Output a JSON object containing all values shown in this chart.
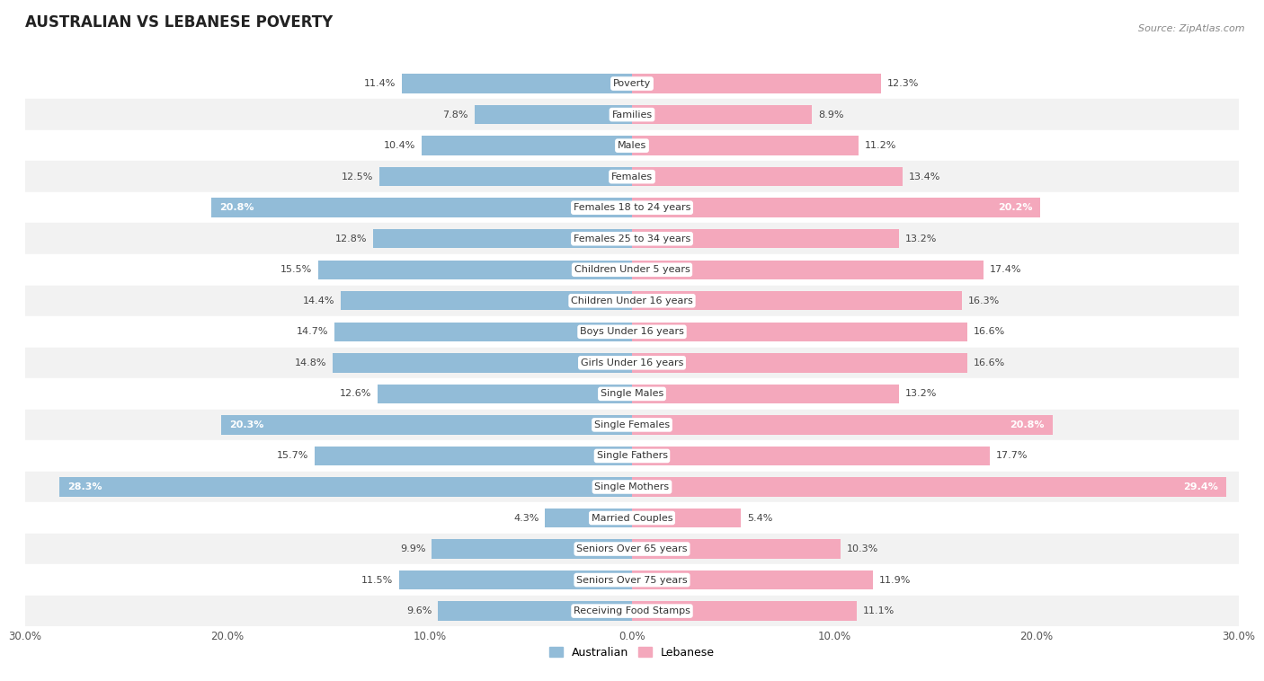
{
  "title": "AUSTRALIAN VS LEBANESE POVERTY",
  "source": "Source: ZipAtlas.com",
  "categories": [
    "Poverty",
    "Families",
    "Males",
    "Females",
    "Females 18 to 24 years",
    "Females 25 to 34 years",
    "Children Under 5 years",
    "Children Under 16 years",
    "Boys Under 16 years",
    "Girls Under 16 years",
    "Single Males",
    "Single Females",
    "Single Fathers",
    "Single Mothers",
    "Married Couples",
    "Seniors Over 65 years",
    "Seniors Over 75 years",
    "Receiving Food Stamps"
  ],
  "australian": [
    11.4,
    7.8,
    10.4,
    12.5,
    20.8,
    12.8,
    15.5,
    14.4,
    14.7,
    14.8,
    12.6,
    20.3,
    15.7,
    28.3,
    4.3,
    9.9,
    11.5,
    9.6
  ],
  "lebanese": [
    12.3,
    8.9,
    11.2,
    13.4,
    20.2,
    13.2,
    17.4,
    16.3,
    16.6,
    16.6,
    13.2,
    20.8,
    17.7,
    29.4,
    5.4,
    10.3,
    11.9,
    11.1
  ],
  "australian_color": "#92bcd8",
  "lebanese_color": "#f4a8bc",
  "background_color": "#ffffff",
  "row_color_odd": "#f2f2f2",
  "row_color_even": "#ffffff",
  "xlim": 30.0,
  "bar_height": 0.62,
  "title_fontsize": 12,
  "label_fontsize": 8,
  "value_fontsize": 8,
  "legend_fontsize": 9
}
